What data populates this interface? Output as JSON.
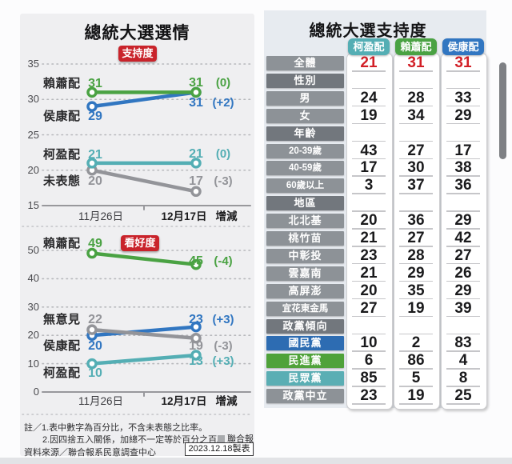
{
  "left_panel": {
    "title": "總統大選選情"
  },
  "right_panel": {
    "title": "總統大選支持度"
  },
  "colors": {
    "green": "#4aa243",
    "blue": "#3176c1",
    "teal": "#54aeb4",
    "gray": "#939499",
    "badge_red": "#c9232b",
    "value_red": "#d22027",
    "kmt_blue": "#2d6cb2",
    "dpp_green": "#4fa23a",
    "tpp_teal": "#5aaeb4",
    "label_gray": "#8d9297",
    "section_gray": "#72777d"
  },
  "chart_data": [
    {
      "type": "line",
      "title": "總統大選選情－支持度",
      "badge": "支持度",
      "x": [
        "11月26日",
        "12月17日"
      ],
      "x_extra_label": "增減",
      "y_ticks": [
        35,
        30,
        25,
        20,
        15
      ],
      "ylim": [
        15,
        35
      ],
      "grid": "dotted",
      "legend_position": "inline",
      "series": [
        {
          "name": "賴蕭配",
          "color": "green",
          "values": [
            31,
            31
          ],
          "change": "(0)"
        },
        {
          "name": "侯康配",
          "color": "blue",
          "values": [
            29,
            31
          ],
          "change": "(+2)"
        },
        {
          "name": "柯盈配",
          "color": "teal",
          "values": [
            21,
            21
          ],
          "change": "(0)"
        },
        {
          "name": "未表態",
          "color": "gray",
          "values": [
            20,
            17
          ],
          "change": "(-3)"
        }
      ]
    },
    {
      "type": "line",
      "title": "總統大選選情－看好度",
      "badge": "看好度",
      "x": [
        "11月26日",
        "12月17日"
      ],
      "x_extra_label": "增減",
      "y_ticks": [
        50,
        40,
        30,
        20,
        10,
        0
      ],
      "ylim": [
        0,
        50
      ],
      "grid": "dotted",
      "legend_position": "inline",
      "series": [
        {
          "name": "賴蕭配",
          "color": "green",
          "values": [
            49,
            45
          ],
          "change": "(-4)"
        },
        {
          "name": "無意見",
          "color": "gray",
          "values": [
            22,
            19
          ],
          "change": "(-3)"
        },
        {
          "name": "侯康配",
          "color": "blue",
          "values": [
            20,
            23
          ],
          "change": "(+3)"
        },
        {
          "name": "柯盈配",
          "color": "teal",
          "values": [
            10,
            13
          ],
          "change": "(+3)"
        }
      ]
    },
    {
      "type": "table",
      "title": "總統大選支持度",
      "columns": [
        {
          "label": "柯盈配",
          "color": "teal"
        },
        {
          "label": "賴蕭配",
          "color": "green"
        },
        {
          "label": "侯康配",
          "color": "blue"
        }
      ],
      "rows": [
        {
          "label": "全體",
          "kind": "total",
          "values": [
            "21",
            "31",
            "31"
          ]
        },
        {
          "label": "性別",
          "kind": "section",
          "values": [
            "",
            "",
            ""
          ]
        },
        {
          "label": "男",
          "kind": "data",
          "values": [
            "24",
            "28",
            "33"
          ]
        },
        {
          "label": "女",
          "kind": "data",
          "values": [
            "19",
            "34",
            "29"
          ]
        },
        {
          "label": "年齡",
          "kind": "section",
          "values": [
            "",
            "",
            ""
          ]
        },
        {
          "label": "20-39歲",
          "kind": "data",
          "values": [
            "43",
            "27",
            "17"
          ]
        },
        {
          "label": "40-59歲",
          "kind": "data",
          "values": [
            "17",
            "30",
            "38"
          ]
        },
        {
          "label": "60歲以上",
          "kind": "data",
          "values": [
            "3",
            "37",
            "36"
          ]
        },
        {
          "label": "地區",
          "kind": "section",
          "values": [
            "",
            "",
            ""
          ]
        },
        {
          "label": "北北基",
          "kind": "data",
          "values": [
            "20",
            "36",
            "29"
          ]
        },
        {
          "label": "桃竹苗",
          "kind": "data",
          "values": [
            "21",
            "27",
            "42"
          ]
        },
        {
          "label": "中彰投",
          "kind": "data",
          "values": [
            "23",
            "28",
            "27"
          ]
        },
        {
          "label": "雲嘉南",
          "kind": "data",
          "values": [
            "21",
            "29",
            "26"
          ]
        },
        {
          "label": "高屏澎",
          "kind": "data",
          "values": [
            "20",
            "35",
            "29"
          ]
        },
        {
          "label": "宜花東金馬",
          "kind": "data",
          "values": [
            "27",
            "19",
            "39"
          ]
        },
        {
          "label": "政黨傾向",
          "kind": "section",
          "values": [
            "",
            "",
            ""
          ]
        },
        {
          "label": "國民黨",
          "kind": "party-kmt",
          "values": [
            "10",
            "2",
            "83"
          ]
        },
        {
          "label": "民進黨",
          "kind": "party-dpp",
          "values": [
            "6",
            "86",
            "4"
          ]
        },
        {
          "label": "民眾黨",
          "kind": "party-tpp",
          "values": [
            "85",
            "5",
            "8"
          ]
        },
        {
          "label": "政黨中立",
          "kind": "data",
          "values": [
            "23",
            "19",
            "25"
          ]
        }
      ]
    }
  ],
  "footnotes": {
    "line1": "註／1.表中數字為百分比，不含未表態之比率。",
    "line2": "2.因四捨五入關係，加總不一定等於百分之百。",
    "brand": "聯合報",
    "source": "資料來源／聯合報系民意調查中心",
    "date_box": "2023.12.18製表"
  }
}
